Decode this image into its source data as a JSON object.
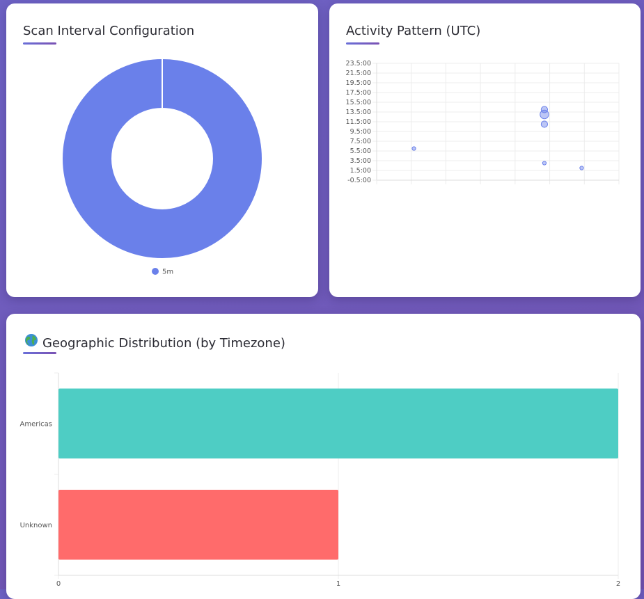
{
  "cards": {
    "scan_interval": {
      "title": "Scan Interval Configuration"
    },
    "activity": {
      "title": "Activity Pattern (UTC)"
    },
    "geo": {
      "icon": "globe-icon",
      "title": "Geographic Distribution (by Timezone)"
    }
  },
  "colors": {
    "donut": "#6a80ea",
    "scatter_fill": "rgba(106,128,234,0.45)",
    "scatter_stroke": "#6a80ea",
    "americas": "#4ecdc4",
    "unknown": "#ff6b6b",
    "grid": "#ececec",
    "tick_text": "#555555"
  },
  "chart_data": [
    {
      "id": "scan-interval-donut",
      "type": "pie",
      "title": "Scan Interval Configuration",
      "labels": [
        "5m"
      ],
      "values": [
        1
      ],
      "legend": "bottom"
    },
    {
      "id": "activity-scatter",
      "type": "scatter",
      "title": "Activity Pattern (UTC)",
      "ylim": [
        -0.5,
        23.5
      ],
      "y_ticks": [
        "23.5:00",
        "21.5:00",
        "19.5:00",
        "17.5:00",
        "15.5:00",
        "13.5:00",
        "11.5:00",
        "9.5:00",
        "7.5:00",
        "5.5:00",
        "3.5:00",
        "1.5:00",
        "-0.5:00"
      ],
      "xlim": [
        0,
        6.5
      ],
      "x_tick_labels": [],
      "points": [
        {
          "x": 1.0,
          "y": 6.0,
          "r": 1
        },
        {
          "x": 4.5,
          "y": 14.0,
          "r": 2
        },
        {
          "x": 4.5,
          "y": 13.0,
          "r": 3
        },
        {
          "x": 4.5,
          "y": 11.0,
          "r": 2
        },
        {
          "x": 4.5,
          "y": 3.0,
          "r": 1
        },
        {
          "x": 5.5,
          "y": 2.0,
          "r": 1
        }
      ]
    },
    {
      "id": "geo-bar",
      "type": "bar",
      "orientation": "horizontal",
      "title": "Geographic Distribution (by Timezone)",
      "categories": [
        "Americas",
        "Unknown"
      ],
      "values": [
        2,
        1
      ],
      "xlim": [
        0,
        2
      ],
      "x_ticks": [
        "0",
        "1",
        "2"
      ]
    }
  ]
}
